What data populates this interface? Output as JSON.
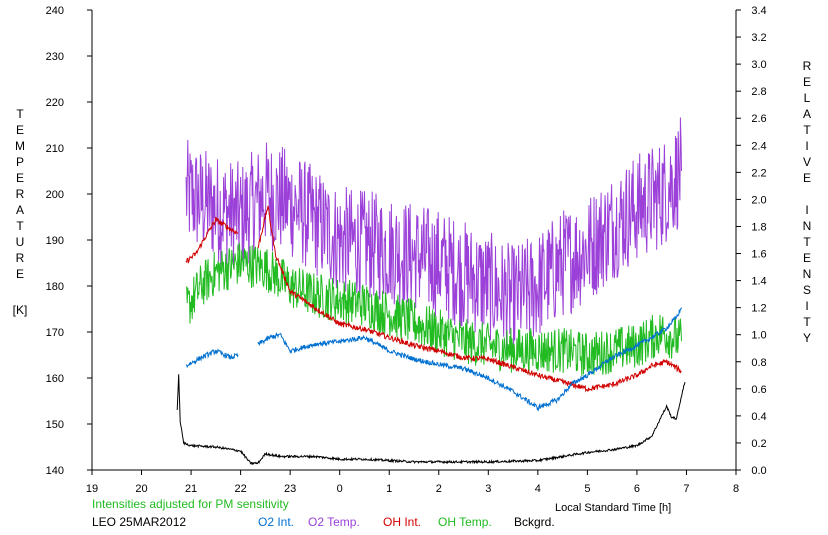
{
  "chart_data": {
    "type": "line",
    "station": "LEO 25MAR2012",
    "note": "Intensities adjusted for PM sensitivity",
    "xlabel": "Local Standard Time [h]",
    "left_axis": {
      "title_letters": [
        "T",
        "E",
        "M",
        "P",
        "E",
        "R",
        "A",
        "T",
        "U",
        "R",
        "E"
      ],
      "unit": "[K]",
      "range": [
        140,
        240
      ],
      "ticks": [
        140,
        150,
        160,
        170,
        180,
        190,
        200,
        210,
        220,
        230,
        240
      ]
    },
    "right_axis": {
      "title_letters_1": [
        "R",
        "E",
        "L",
        "A",
        "T",
        "I",
        "V",
        "E"
      ],
      "title_letters_2": [
        "I",
        "N",
        "T",
        "E",
        "N",
        "S",
        "I",
        "T",
        "Y"
      ],
      "range": [
        0.0,
        3.4
      ],
      "ticks": [
        "0.0",
        "0.2",
        "0.4",
        "0.6",
        "0.8",
        "1.0",
        "1.2",
        "1.4",
        "1.6",
        "1.8",
        "2.0",
        "2.2",
        "2.4",
        "2.6",
        "2.8",
        "3.0",
        "3.2",
        "3.4"
      ]
    },
    "x_axis": {
      "range": [
        19,
        32
      ],
      "ticks": [
        {
          "x": 19,
          "label": "19"
        },
        {
          "x": 20,
          "label": "20"
        },
        {
          "x": 21,
          "label": "21"
        },
        {
          "x": 22,
          "label": "22"
        },
        {
          "x": 23,
          "label": "23"
        },
        {
          "x": 24,
          "label": "0"
        },
        {
          "x": 25,
          "label": "1"
        },
        {
          "x": 26,
          "label": "2"
        },
        {
          "x": 27,
          "label": "3"
        },
        {
          "x": 28,
          "label": "4"
        },
        {
          "x": 29,
          "label": "5"
        },
        {
          "x": 30,
          "label": "6"
        },
        {
          "x": 31,
          "label": "7"
        },
        {
          "x": 32,
          "label": "8"
        }
      ]
    },
    "series": [
      {
        "name": "O2 Int.",
        "color": "#0070d0",
        "axis": "right",
        "noise": 0.018,
        "segments": [
          [
            [
              20.9,
              0.77
            ],
            [
              21.2,
              0.83
            ],
            [
              21.5,
              0.88
            ],
            [
              21.8,
              0.83
            ],
            [
              21.95,
              0.85
            ]
          ],
          [
            [
              22.35,
              0.93
            ],
            [
              22.6,
              0.98
            ],
            [
              22.8,
              1.0
            ],
            [
              23.0,
              0.88
            ],
            [
              23.5,
              0.93
            ],
            [
              24.0,
              0.95
            ],
            [
              24.5,
              0.98
            ],
            [
              25.0,
              0.88
            ],
            [
              25.5,
              0.82
            ],
            [
              26.0,
              0.78
            ],
            [
              26.5,
              0.75
            ],
            [
              27.0,
              0.68
            ],
            [
              27.5,
              0.58
            ],
            [
              28.0,
              0.46
            ],
            [
              28.4,
              0.52
            ],
            [
              28.7,
              0.64
            ],
            [
              29.0,
              0.7
            ],
            [
              29.5,
              0.83
            ],
            [
              30.0,
              0.92
            ],
            [
              30.3,
              0.98
            ],
            [
              30.6,
              1.05
            ],
            [
              30.8,
              1.13
            ],
            [
              30.9,
              1.2
            ]
          ]
        ]
      },
      {
        "name": "O2 Temp.",
        "color": "#9b40d8",
        "axis": "left",
        "noise": 12,
        "segments": [
          [
            [
              20.9,
              200
            ],
            [
              21.5,
              197
            ],
            [
              22.0,
              195
            ],
            [
              22.5,
              200
            ],
            [
              23.0,
              198
            ],
            [
              24.0,
              190
            ],
            [
              25.0,
              188
            ],
            [
              26.0,
              185
            ],
            [
              27.0,
              180
            ],
            [
              27.5,
              177
            ],
            [
              28.0,
              180
            ],
            [
              28.5,
              185
            ],
            [
              29.0,
              188
            ],
            [
              29.5,
              193
            ],
            [
              30.0,
              197
            ],
            [
              30.5,
              200
            ],
            [
              30.9,
              205
            ]
          ]
        ]
      },
      {
        "name": "OH Int.",
        "color": "#d00000",
        "axis": "right",
        "noise": 0.02,
        "segments": [
          [
            [
              20.9,
              1.54
            ],
            [
              21.1,
              1.6
            ],
            [
              21.3,
              1.73
            ],
            [
              21.5,
              1.85
            ],
            [
              21.8,
              1.78
            ],
            [
              21.95,
              1.75
            ]
          ],
          [
            [
              22.35,
              1.64
            ],
            [
              22.55,
              1.95
            ],
            [
              22.7,
              1.6
            ],
            [
              23.0,
              1.32
            ],
            [
              23.5,
              1.2
            ],
            [
              24.0,
              1.08
            ],
            [
              24.5,
              1.04
            ],
            [
              25.0,
              0.98
            ],
            [
              25.5,
              0.92
            ],
            [
              26.0,
              0.88
            ],
            [
              26.5,
              0.83
            ],
            [
              27.0,
              0.82
            ],
            [
              27.5,
              0.76
            ],
            [
              28.0,
              0.7
            ],
            [
              28.5,
              0.65
            ],
            [
              29.0,
              0.6
            ],
            [
              29.5,
              0.63
            ],
            [
              30.0,
              0.7
            ],
            [
              30.3,
              0.77
            ],
            [
              30.6,
              0.8
            ],
            [
              30.9,
              0.73
            ]
          ]
        ]
      },
      {
        "name": "OH Temp.",
        "color": "#22bb22",
        "axis": "left",
        "noise": 5,
        "segments": [
          [
            [
              20.9,
              175
            ],
            [
              21.2,
              180
            ],
            [
              21.5,
              183
            ],
            [
              22.0,
              185
            ],
            [
              22.5,
              184
            ],
            [
              23.0,
              180
            ],
            [
              23.5,
              178
            ],
            [
              24.0,
              177
            ],
            [
              24.5,
              176
            ],
            [
              25.0,
              174
            ],
            [
              25.5,
              172
            ],
            [
              26.0,
              170
            ],
            [
              26.5,
              168
            ],
            [
              27.0,
              167
            ],
            [
              27.5,
              166
            ],
            [
              28.0,
              166
            ],
            [
              28.5,
              166
            ],
            [
              29.0,
              165
            ],
            [
              29.5,
              166
            ],
            [
              30.0,
              167
            ],
            [
              30.5,
              170
            ],
            [
              30.9,
              168
            ]
          ]
        ]
      },
      {
        "name": "Bckgrd.",
        "color": "#000000",
        "axis": "right",
        "noise": 0.008,
        "segments": [
          [
            [
              20.72,
              0.45
            ],
            [
              20.75,
              0.7
            ],
            [
              20.78,
              0.36
            ],
            [
              20.85,
              0.2
            ],
            [
              21.0,
              0.18
            ],
            [
              21.5,
              0.17
            ],
            [
              22.0,
              0.14
            ],
            [
              22.2,
              0.05
            ],
            [
              22.35,
              0.05
            ],
            [
              22.5,
              0.12
            ],
            [
              22.8,
              0.1
            ],
            [
              23.5,
              0.1
            ],
            [
              24.0,
              0.08
            ],
            [
              24.5,
              0.08
            ],
            [
              25.0,
              0.07
            ],
            [
              25.5,
              0.06
            ],
            [
              26.0,
              0.06
            ],
            [
              27.0,
              0.06
            ],
            [
              28.0,
              0.07
            ],
            [
              28.5,
              0.1
            ],
            [
              29.0,
              0.13
            ],
            [
              29.5,
              0.15
            ],
            [
              30.0,
              0.18
            ],
            [
              30.3,
              0.25
            ],
            [
              30.5,
              0.4
            ],
            [
              30.6,
              0.47
            ],
            [
              30.7,
              0.39
            ],
            [
              30.8,
              0.38
            ],
            [
              30.9,
              0.55
            ],
            [
              30.97,
              0.65
            ]
          ]
        ]
      }
    ]
  }
}
